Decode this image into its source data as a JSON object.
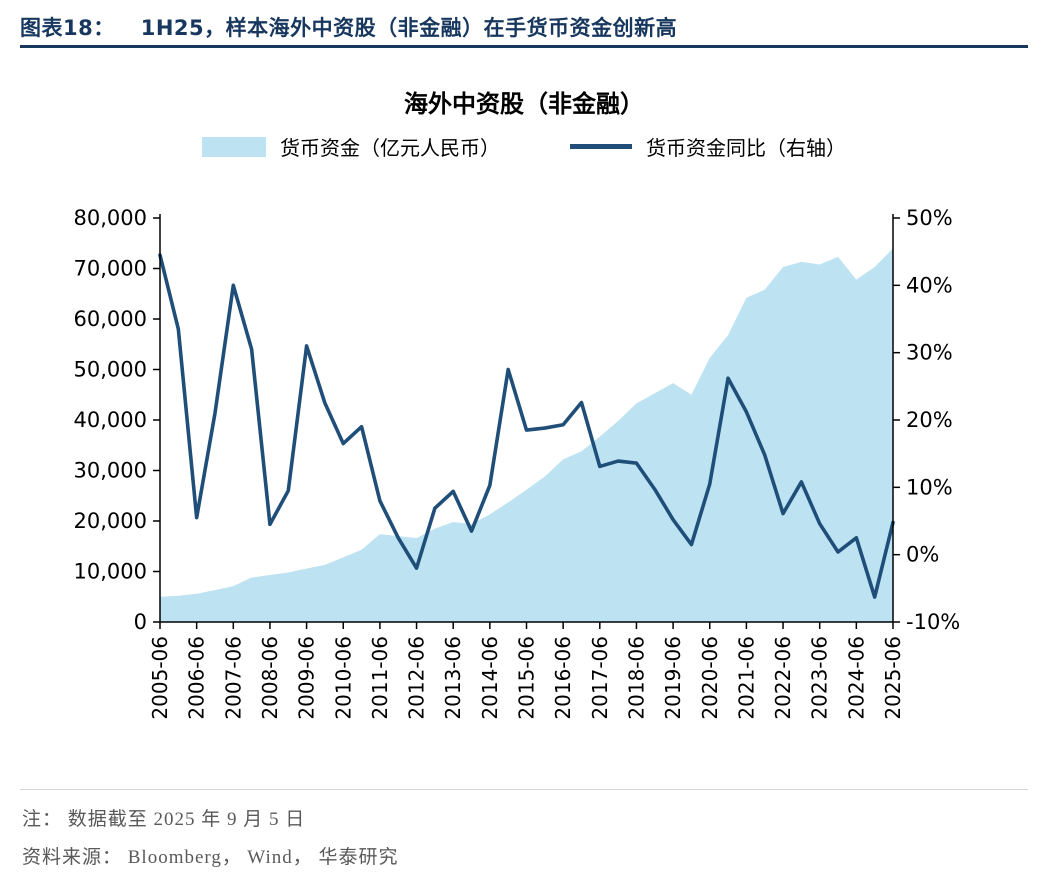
{
  "header": {
    "figure_label": "图表18：",
    "figure_title": "1H25，样本海外中资股（非金融）在手货币资金创新高"
  },
  "chart": {
    "title": "海外中资股（非金融）",
    "legend": [
      {
        "label": "货币资金（亿元人民币）",
        "swatch": "area",
        "color": "#BDE3F3"
      },
      {
        "label": "货币资金同比（右轴）",
        "swatch": "line",
        "color": "#1F4E79"
      }
    ]
  },
  "chart_data": {
    "type": "combo",
    "x": [
      "2005-06",
      "2005-12",
      "2006-06",
      "2006-12",
      "2007-06",
      "2007-12",
      "2008-06",
      "2008-12",
      "2009-06",
      "2009-12",
      "2010-06",
      "2010-12",
      "2011-06",
      "2011-12",
      "2012-06",
      "2012-12",
      "2013-06",
      "2013-12",
      "2014-06",
      "2014-12",
      "2015-06",
      "2015-12",
      "2016-06",
      "2016-12",
      "2017-06",
      "2017-12",
      "2018-06",
      "2018-12",
      "2019-06",
      "2019-12",
      "2020-06",
      "2020-12",
      "2021-06",
      "2021-12",
      "2022-06",
      "2022-12",
      "2023-06",
      "2023-12",
      "2024-06",
      "2024-12",
      "2025-06"
    ],
    "x_tick_labels": [
      "2005-06",
      "2006-06",
      "2007-06",
      "2008-06",
      "2009-06",
      "2010-06",
      "2011-06",
      "2012-06",
      "2013-06",
      "2014-06",
      "2015-06",
      "2016-06",
      "2017-06",
      "2018-06",
      "2019-06",
      "2020-06",
      "2021-06",
      "2022-06",
      "2023-06",
      "2024-06",
      "2025-06"
    ],
    "series": [
      {
        "name": "货币资金（亿元人民币）",
        "type": "area",
        "axis": "left",
        "color": "#BDE3F3",
        "values": [
          5000,
          5200,
          5600,
          6300,
          7100,
          8800,
          9300,
          9800,
          10600,
          11300,
          12800,
          14300,
          17400,
          17000,
          16600,
          18500,
          19800,
          19400,
          21300,
          23700,
          26200,
          28800,
          32200,
          33800,
          36700,
          39800,
          43300,
          45300,
          47300,
          45000,
          52300,
          56800,
          64200,
          65800,
          70300,
          71300,
          70800,
          72300,
          67800,
          70300,
          74000
        ]
      },
      {
        "name": "货币资金同比（右轴）",
        "type": "line",
        "axis": "right",
        "color": "#1F4E79",
        "values": [
          44.5,
          33.5,
          5.5,
          21.0,
          40.0,
          30.5,
          4.5,
          9.5,
          31.0,
          22.5,
          16.5,
          19.0,
          8.0,
          2.5,
          -2.0,
          6.9,
          9.4,
          3.5,
          10.3,
          27.5,
          18.5,
          18.8,
          19.3,
          22.6,
          13.1,
          13.9,
          13.6,
          9.7,
          5.2,
          1.5,
          10.5,
          26.2,
          21.2,
          14.8,
          6.1,
          10.8,
          4.6,
          0.4,
          2.5,
          -6.3,
          4.8
        ]
      }
    ],
    "left_axis": {
      "min": 0,
      "max": 80000,
      "tick_values": [
        0,
        10000,
        20000,
        30000,
        40000,
        50000,
        60000,
        70000,
        80000
      ],
      "tick_labels": [
        "0",
        "10,000",
        "20,000",
        "30,000",
        "40,000",
        "50,000",
        "60,000",
        "70,000",
        "80,000"
      ]
    },
    "right_axis": {
      "min": -10,
      "max": 50,
      "tick_values": [
        -10,
        0,
        10,
        20,
        30,
        40,
        50
      ],
      "tick_labels": [
        "-10%",
        "0%",
        "10%",
        "20%",
        "30%",
        "40%",
        "50%"
      ]
    },
    "grid": "off",
    "legend_position": "top-center"
  },
  "footer": {
    "note": "注： 数据截至 2025 年 9 月 5 日",
    "source": "资料来源： Bloomberg， Wind， 华泰研究"
  },
  "colors": {
    "accent_navy": "#1F4E79",
    "header_navy": "#17375E",
    "area_fill": "#BDE3F3",
    "note_gray": "#595959",
    "axis_black": "#000000"
  }
}
